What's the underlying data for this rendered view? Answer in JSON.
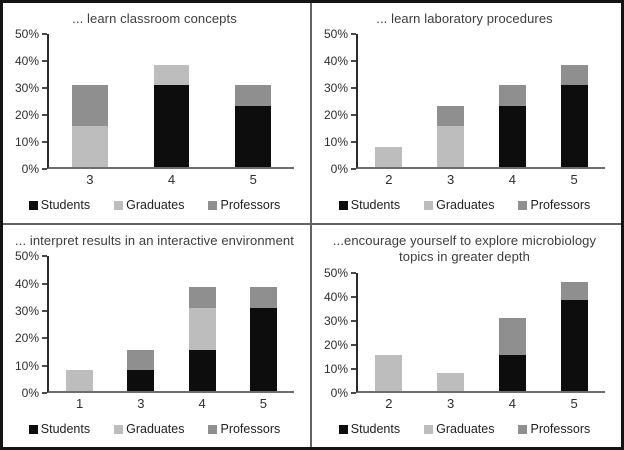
{
  "legend_labels": [
    "Students",
    "Graduates",
    "Professors"
  ],
  "colors": {
    "students": "#0d0d0d",
    "graduates": "#bdbdbd",
    "professors": "#8f8f8f",
    "axis_y": "#2b2b2b",
    "axis_x": "#6e6e6e",
    "divider": "#636363",
    "outer_border": "#141414"
  },
  "chart_data": [
    {
      "type": "bar",
      "stacked": true,
      "title": "... learn classroom concepts",
      "categories": [
        "3",
        "4",
        "5"
      ],
      "series": [
        {
          "name": "Students",
          "color": "#0d0d0d",
          "values": [
            0,
            30.8,
            23.1
          ]
        },
        {
          "name": "Graduates",
          "color": "#bdbdbd",
          "values": [
            15.4,
            7.7,
            0
          ]
        },
        {
          "name": "Professors",
          "color": "#8f8f8f",
          "values": [
            15.4,
            0,
            7.7
          ]
        }
      ],
      "ylim": [
        0,
        50
      ],
      "ytick_values": [
        0,
        10,
        20,
        30,
        40,
        50
      ],
      "ytick_labels": [
        "0%",
        "10%",
        "20%",
        "30%",
        "40%",
        "50%"
      ],
      "grid": false,
      "legend_position": "bottom"
    },
    {
      "type": "bar",
      "stacked": true,
      "title": "... learn laboratory procedures",
      "categories": [
        "2",
        "3",
        "4",
        "5"
      ],
      "series": [
        {
          "name": "Students",
          "color": "#0d0d0d",
          "values": [
            0,
            0,
            23.1,
            30.8
          ]
        },
        {
          "name": "Graduates",
          "color": "#bdbdbd",
          "values": [
            7.7,
            15.4,
            0,
            0
          ]
        },
        {
          "name": "Professors",
          "color": "#8f8f8f",
          "values": [
            0,
            7.7,
            7.7,
            7.7
          ]
        }
      ],
      "ylim": [
        0,
        50
      ],
      "ytick_values": [
        0,
        10,
        20,
        30,
        40,
        50
      ],
      "ytick_labels": [
        "0%",
        "10%",
        "20%",
        "30%",
        "40%",
        "50%"
      ],
      "grid": false,
      "legend_position": "bottom"
    },
    {
      "type": "bar",
      "stacked": true,
      "title": "... interpret results in an interactive environment",
      "categories": [
        "1",
        "3",
        "4",
        "5"
      ],
      "series": [
        {
          "name": "Students",
          "color": "#0d0d0d",
          "values": [
            0,
            7.7,
            15.4,
            30.8
          ]
        },
        {
          "name": "Graduates",
          "color": "#bdbdbd",
          "values": [
            7.7,
            0,
            15.4,
            0
          ]
        },
        {
          "name": "Professors",
          "color": "#8f8f8f",
          "values": [
            0,
            7.7,
            7.7,
            7.7
          ]
        }
      ],
      "ylim": [
        0,
        50
      ],
      "ytick_values": [
        0,
        10,
        20,
        30,
        40,
        50
      ],
      "ytick_labels": [
        "0%",
        "10%",
        "20%",
        "30%",
        "40%",
        "50%"
      ],
      "grid": false,
      "legend_position": "bottom"
    },
    {
      "type": "bar",
      "stacked": true,
      "title": "...encourage yourself to explore microbiology topics in greater depth",
      "categories": [
        "2",
        "3",
        "4",
        "5"
      ],
      "series": [
        {
          "name": "Students",
          "color": "#0d0d0d",
          "values": [
            0,
            0,
            15.4,
            38.5
          ]
        },
        {
          "name": "Graduates",
          "color": "#bdbdbd",
          "values": [
            15.4,
            7.7,
            0,
            0
          ]
        },
        {
          "name": "Professors",
          "color": "#8f8f8f",
          "values": [
            0,
            0,
            15.4,
            7.7
          ]
        }
      ],
      "ylim": [
        0,
        50
      ],
      "ytick_values": [
        0,
        10,
        20,
        30,
        40,
        50
      ],
      "ytick_labels": [
        "0%",
        "10%",
        "20%",
        "30%",
        "40%",
        "50%"
      ],
      "grid": false,
      "legend_position": "bottom"
    }
  ]
}
